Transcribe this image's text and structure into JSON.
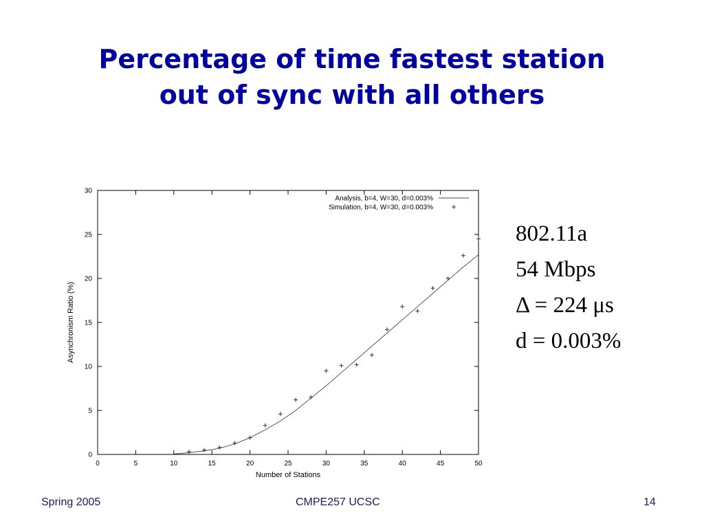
{
  "slide": {
    "title_line1": "Percentage of time fastest station",
    "title_line2": "out of sync with all others",
    "notes": [
      "802.11a",
      "54 Mbps",
      "Δ = 224 μs",
      "d = 0.003%"
    ],
    "footer_left": "Spring 2005",
    "footer_center": "CMPE257   UCSC",
    "footer_right": "14"
  },
  "chart_data": {
    "type": "line",
    "title": "",
    "xlabel": "Number of Stations",
    "ylabel": "Asynchronism Ratio (%)",
    "xlim": [
      0,
      50
    ],
    "ylim": [
      0,
      30
    ],
    "xticks": [
      0,
      5,
      10,
      15,
      20,
      25,
      30,
      35,
      40,
      45,
      50
    ],
    "yticks": [
      0,
      5,
      10,
      15,
      20,
      25,
      30
    ],
    "grid": false,
    "legend": "top-right",
    "series": [
      {
        "name": "Analysis, b=4, W=30, d=0.003%",
        "style": "line",
        "x": [
          10,
          12,
          14,
          16,
          18,
          20,
          22,
          24,
          26,
          28,
          30,
          32,
          34,
          36,
          38,
          40,
          42,
          44,
          46,
          48,
          50
        ],
        "y": [
          0.05,
          0.2,
          0.4,
          0.7,
          1.2,
          1.9,
          2.8,
          3.8,
          5.0,
          6.4,
          7.8,
          9.3,
          10.8,
          12.3,
          13.8,
          15.3,
          16.8,
          18.3,
          19.8,
          21.3,
          22.7
        ]
      },
      {
        "name": "Simulation, b=4, W=30, d=0.003%",
        "style": "points",
        "x": [
          12,
          14,
          16,
          18,
          20,
          22,
          24,
          26,
          28,
          30,
          32,
          34,
          36,
          38,
          40,
          42,
          44,
          46,
          48,
          50
        ],
        "y": [
          0.3,
          0.5,
          0.8,
          1.3,
          1.9,
          3.3,
          4.6,
          6.2,
          6.5,
          9.5,
          10.1,
          10.2,
          11.3,
          14.2,
          16.8,
          16.3,
          18.9,
          20.0,
          22.6,
          24.5
        ]
      }
    ]
  }
}
